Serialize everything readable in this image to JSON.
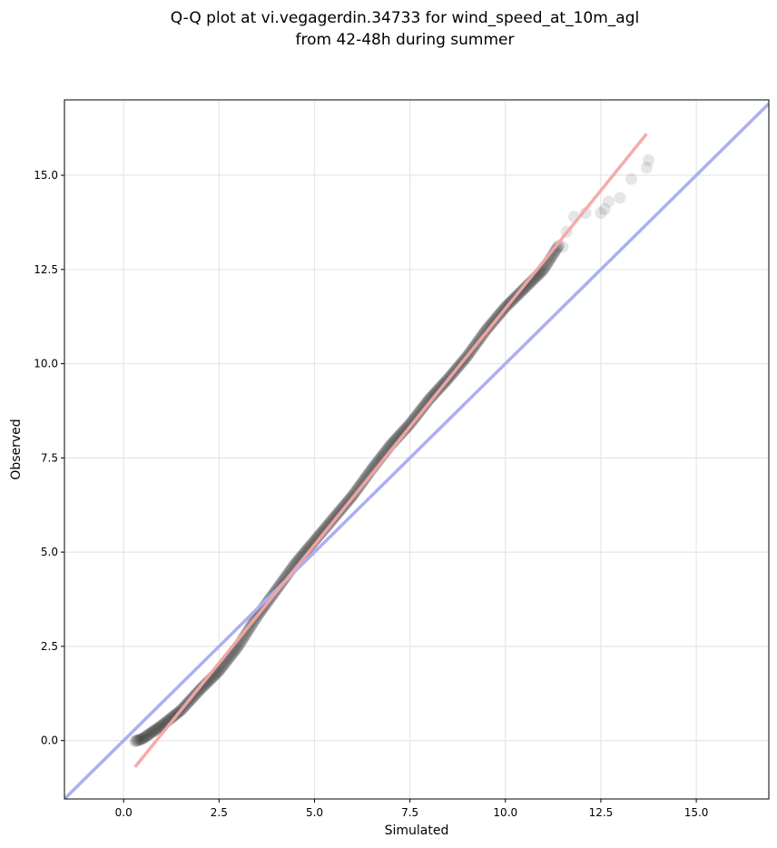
{
  "chart_data": {
    "type": "scatter",
    "title_line1": "Q-Q plot at vi.vegagerdin.34733 for wind_speed_at_10m_agl",
    "title_line2": "from 42-48h during summer",
    "xlabel": "Simulated",
    "ylabel": "Observed",
    "xlim": [
      -1.55,
      16.9
    ],
    "ylim": [
      -1.55,
      17.0
    ],
    "xticks": [
      0.0,
      2.5,
      5.0,
      7.5,
      10.0,
      12.5,
      15.0
    ],
    "yticks": [
      0.0,
      2.5,
      5.0,
      7.5,
      10.0,
      12.5,
      15.0
    ],
    "xtick_labels": [
      "0.0",
      "2.5",
      "5.0",
      "7.5",
      "10.0",
      "12.5",
      "15.0"
    ],
    "ytick_labels": [
      "0.0",
      "2.5",
      "5.0",
      "7.5",
      "10.0",
      "12.5",
      "15.0"
    ],
    "grid": true,
    "identity_line_color": "#aab0f0",
    "fit_line": {
      "x": [
        0.3,
        13.7
      ],
      "y": [
        -0.7,
        16.1
      ],
      "color": "#f4a6a8"
    },
    "point_color": "#333333",
    "quantiles_anchor": {
      "x": [
        0.2,
        0.5,
        1.0,
        1.5,
        2.0,
        2.5,
        3.0,
        3.5,
        4.0,
        4.5,
        5.0,
        5.5,
        6.0,
        6.5,
        7.0,
        7.5,
        8.0,
        8.5,
        9.0,
        9.5,
        10.0,
        10.5,
        11.0,
        11.5,
        12.0,
        12.5,
        13.0,
        13.5
      ],
      "y": [
        -0.05,
        0.05,
        0.4,
        0.8,
        1.35,
        1.85,
        2.5,
        3.3,
        4.0,
        4.7,
        5.3,
        5.9,
        6.5,
        7.2,
        7.85,
        8.4,
        9.05,
        9.6,
        10.2,
        10.9,
        11.5,
        12.0,
        12.5,
        13.3,
        14.0,
        14.2,
        14.5,
        15.2
      ]
    },
    "tail_points": {
      "x": [
        11.5,
        11.6,
        11.8,
        12.1,
        12.5,
        12.6,
        12.7,
        13.0,
        13.3,
        13.7,
        13.75
      ],
      "y": [
        13.1,
        13.5,
        13.9,
        14.0,
        14.0,
        14.1,
        14.3,
        14.4,
        14.9,
        15.2,
        15.4
      ]
    }
  }
}
